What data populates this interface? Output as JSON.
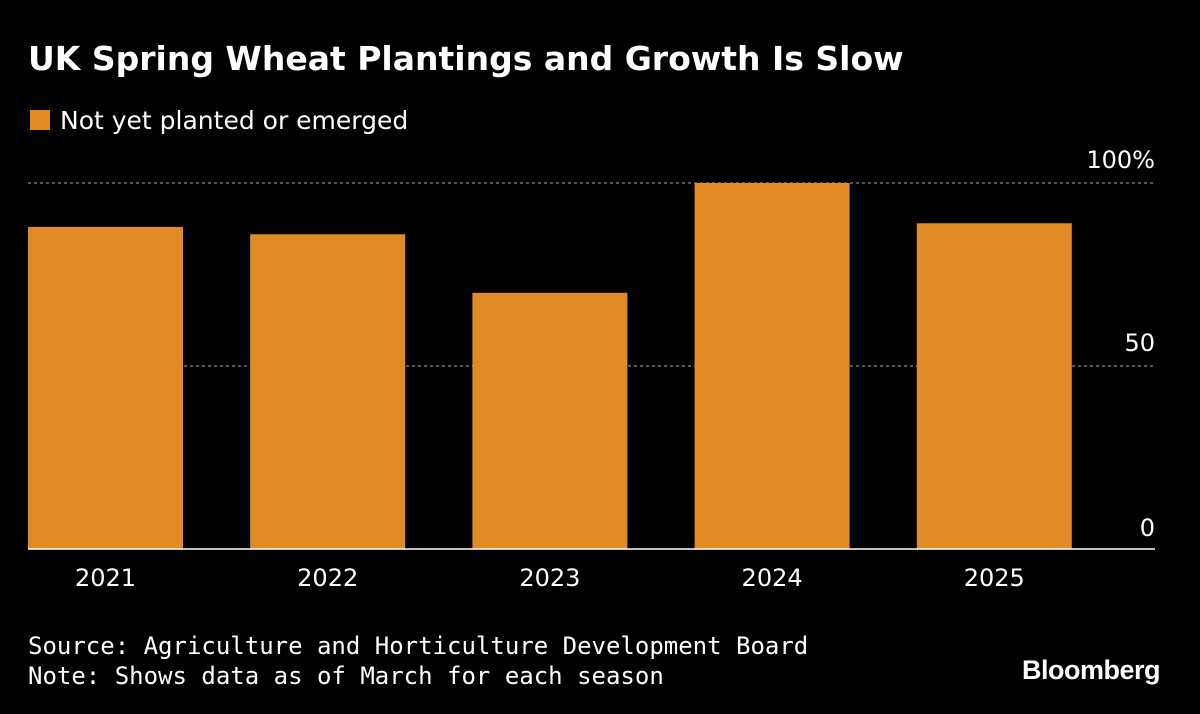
{
  "colors": {
    "background": "#000000",
    "bar": "#E08B26",
    "text": "#FFFFFF",
    "gridline": "#8A8A8A"
  },
  "chart_data": {
    "type": "bar",
    "title": "UK Spring Wheat Plantings and Growth Is Slow",
    "categories": [
      "2021",
      "2022",
      "2023",
      "2024",
      "2025"
    ],
    "series": [
      {
        "name": "Not yet planted or emerged",
        "values": [
          88,
          86,
          70,
          100,
          89
        ]
      }
    ],
    "ylim": [
      0,
      100
    ],
    "yticks": [
      {
        "value": 100,
        "label": "100%"
      },
      {
        "value": 50,
        "label": "50"
      },
      {
        "value": 0,
        "label": "0"
      }
    ],
    "grid": true,
    "legend_position": "top-left",
    "xlabel": "",
    "ylabel": ""
  },
  "footer": {
    "source": "Source: Agriculture and Horticulture Development Board",
    "note": "Note: Shows data as of March for each season"
  },
  "brand": "Bloomberg"
}
